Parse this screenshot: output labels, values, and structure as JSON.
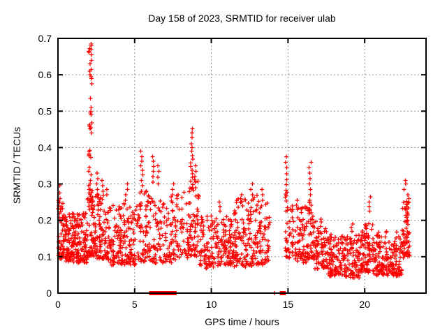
{
  "chart_data": {
    "type": "scatter",
    "title": "Day 158 of 2023, SRMTID for receiver ulab",
    "xlabel": "GPS time / hours",
    "ylabel": "SRMTID / TECUs",
    "xlim": [
      0,
      24
    ],
    "ylim": [
      0,
      0.7
    ],
    "x_ticks": [
      0,
      5,
      10,
      15,
      20
    ],
    "x_tick_labels": [
      "0",
      "5",
      "10",
      "15",
      "20"
    ],
    "y_ticks": [
      0,
      0.1,
      0.2,
      0.3,
      0.4,
      0.5,
      0.6,
      0.7
    ],
    "y_tick_labels": [
      "0",
      "0.1",
      "0.2",
      "0.3",
      "0.4",
      "0.5",
      "0.6",
      "0.7"
    ],
    "grid": true,
    "legend": "none",
    "marker": "plus-cross",
    "marker_color": "#ff0000",
    "grid_color": "#909090",
    "axis_color": "#000000",
    "background_color": "#ffffff",
    "render_seed": 158,
    "bands_format": "[x_start_hours, x_end_hours, n_points, y_min_TECU, y_max_TECU]",
    "bands": [
      [
        0.0,
        0.35,
        40,
        0.095,
        0.27
      ],
      [
        0.35,
        1.0,
        85,
        0.09,
        0.22
      ],
      [
        1.0,
        1.9,
        115,
        0.085,
        0.22
      ],
      [
        1.9,
        2.4,
        65,
        0.1,
        0.29
      ],
      [
        2.4,
        3.2,
        85,
        0.095,
        0.27
      ],
      [
        3.2,
        4.2,
        95,
        0.08,
        0.24
      ],
      [
        4.2,
        5.1,
        80,
        0.08,
        0.245
      ],
      [
        5.1,
        6.05,
        75,
        0.09,
        0.28
      ],
      [
        6.05,
        7.7,
        115,
        0.085,
        0.27
      ],
      [
        7.7,
        8.5,
        45,
        0.1,
        0.28
      ],
      [
        8.5,
        9.2,
        65,
        0.1,
        0.31
      ],
      [
        9.2,
        10.45,
        95,
        0.07,
        0.21
      ],
      [
        10.45,
        11.5,
        90,
        0.08,
        0.215
      ],
      [
        11.5,
        12.65,
        100,
        0.075,
        0.26
      ],
      [
        12.65,
        13.85,
        90,
        0.08,
        0.27
      ],
      [
        14.82,
        15.15,
        30,
        0.1,
        0.28
      ],
      [
        15.15,
        16.35,
        95,
        0.085,
        0.24
      ],
      [
        16.35,
        16.65,
        30,
        0.1,
        0.27
      ],
      [
        16.65,
        17.6,
        85,
        0.07,
        0.2
      ],
      [
        17.6,
        18.65,
        95,
        0.048,
        0.165
      ],
      [
        18.65,
        19.75,
        100,
        0.045,
        0.16
      ],
      [
        19.75,
        20.65,
        90,
        0.055,
        0.19
      ],
      [
        20.65,
        21.65,
        95,
        0.05,
        0.17
      ],
      [
        21.65,
        22.45,
        75,
        0.05,
        0.165
      ],
      [
        22.45,
        22.95,
        55,
        0.1,
        0.25
      ]
    ],
    "columns": [
      {
        "x": 0.12,
        "spread": 0.08,
        "ys": [
          0.295,
          0.275,
          0.26,
          0.25,
          0.24,
          0.23,
          0.22
        ]
      },
      {
        "x": 2.1,
        "spread": 0.1,
        "ys": [
          0.685,
          0.68,
          0.672,
          0.67,
          0.665,
          0.662,
          0.655,
          0.64,
          0.63,
          0.615,
          0.61,
          0.6,
          0.595,
          0.59,
          0.575,
          0.535,
          0.51,
          0.5,
          0.495,
          0.49,
          0.468,
          0.462,
          0.458,
          0.455,
          0.452,
          0.44,
          0.392,
          0.388,
          0.383,
          0.38,
          0.377,
          0.373,
          0.345,
          0.335,
          0.325,
          0.31,
          0.3,
          0.295,
          0.285,
          0.275,
          0.265,
          0.255
        ]
      },
      {
        "x": 2.55,
        "spread": 0.1,
        "ys": [
          0.33,
          0.315,
          0.3,
          0.285,
          0.27
        ]
      },
      {
        "x": 2.95,
        "spread": 0.08,
        "ys": [
          0.31,
          0.295,
          0.28
        ]
      },
      {
        "x": 3.25,
        "spread": 0.08,
        "ys": [
          0.285,
          0.27
        ]
      },
      {
        "x": 4.45,
        "spread": 0.1,
        "ys": [
          0.3,
          0.285,
          0.27,
          0.255
        ]
      },
      {
        "x": 5.45,
        "spread": 0.08,
        "ys": [
          0.39,
          0.375,
          0.362,
          0.35,
          0.338,
          0.325,
          0.31,
          0.295,
          0.28
        ]
      },
      {
        "x": 6.2,
        "spread": 0.06,
        "ys": [
          0.375,
          0.362,
          0.348,
          0.335,
          0.32,
          0.305
        ]
      },
      {
        "x": 6.55,
        "spread": 0.06,
        "ys": [
          0.35,
          0.335,
          0.318,
          0.3
        ]
      },
      {
        "x": 7.5,
        "spread": 0.06,
        "ys": [
          0.3,
          0.285,
          0.27
        ]
      },
      {
        "x": 8.72,
        "spread": 0.07,
        "ys": [
          0.452,
          0.44,
          0.428,
          0.41,
          0.4,
          0.39,
          0.378,
          0.368,
          0.358,
          0.348,
          0.338,
          0.328,
          0.318,
          0.308,
          0.298
        ]
      },
      {
        "x": 9.0,
        "spread": 0.07,
        "ys": [
          0.35,
          0.335,
          0.32,
          0.305,
          0.29
        ]
      },
      {
        "x": 10.55,
        "spread": 0.05,
        "ys": [
          0.25,
          0.238,
          0.225
        ]
      },
      {
        "x": 11.95,
        "spread": 0.1,
        "ys": [
          0.27,
          0.26,
          0.25,
          0.24
        ]
      },
      {
        "x": 12.6,
        "spread": 0.1,
        "ys": [
          0.3,
          0.285,
          0.27,
          0.255
        ]
      },
      {
        "x": 13.3,
        "spread": 0.1,
        "ys": [
          0.285,
          0.27,
          0.255
        ]
      },
      {
        "x": 14.92,
        "spread": 0.07,
        "ys": [
          0.375,
          0.36,
          0.345,
          0.328,
          0.312,
          0.298,
          0.283,
          0.268,
          0.253
        ]
      },
      {
        "x": 15.6,
        "spread": 0.06,
        "ys": [
          0.255,
          0.242,
          0.23
        ]
      },
      {
        "x": 16.45,
        "spread": 0.07,
        "ys": [
          0.36,
          0.345,
          0.33,
          0.315,
          0.3,
          0.285,
          0.27,
          0.255
        ]
      },
      {
        "x": 19.15,
        "spread": 0.08,
        "ys": [
          0.19,
          0.18,
          0.17
        ]
      },
      {
        "x": 20.35,
        "spread": 0.07,
        "ys": [
          0.265,
          0.25,
          0.238,
          0.225
        ]
      },
      {
        "x": 22.62,
        "spread": 0.06,
        "ys": [
          0.31,
          0.3,
          0.285
        ]
      },
      {
        "x": 22.78,
        "spread": 0.1,
        "ys": [
          0.27,
          0.26,
          0.252,
          0.245,
          0.238,
          0.23,
          0.222,
          0.215,
          0.208,
          0.2
        ]
      }
    ],
    "zero_marker_segments_hours": [
      [
        6.06,
        6.46
      ],
      [
        6.52,
        6.58
      ],
      [
        6.66,
        7.1
      ],
      [
        7.16,
        7.24
      ],
      [
        7.46,
        7.62
      ],
      [
        14.58,
        14.74
      ]
    ],
    "zero_plus_markers_hours": [
      14.12
    ]
  }
}
